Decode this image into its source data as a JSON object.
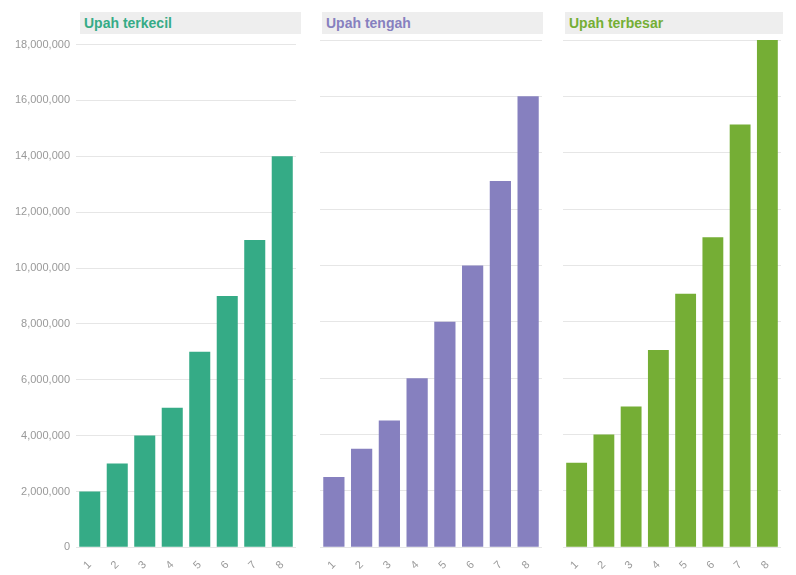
{
  "chart_data": [
    {
      "type": "bar",
      "title": "Upah terkecil",
      "categories": [
        "1",
        "2",
        "3",
        "4",
        "5",
        "6",
        "7",
        "8"
      ],
      "values": [
        2000000,
        3000000,
        4000000,
        5000000,
        7000000,
        9000000,
        11000000,
        14000000
      ],
      "color": "#35ab86",
      "ylim": [
        0,
        18000000
      ],
      "yticks": [
        0,
        {
          "value": 2000000,
          "label": "2,000,000"
        },
        {
          "value": 4000000,
          "label": "4,000,000"
        },
        {
          "value": 6000000,
          "label": "6,000,000"
        },
        {
          "value": 8000000,
          "label": "8,000,000"
        },
        {
          "value": 10000000,
          "label": "10,000,000"
        },
        {
          "value": 12000000,
          "label": "12,000,000"
        },
        {
          "value": 14000000,
          "label": "14,000,000"
        },
        {
          "value": 16000000,
          "label": "16,000,000"
        },
        {
          "value": 18000000,
          "label": "18,000,000"
        }
      ],
      "grid": true
    },
    {
      "type": "bar",
      "title": "Upah tengah",
      "categories": [
        "1",
        "2",
        "3",
        "4",
        "5",
        "6",
        "7",
        "8"
      ],
      "values": [
        2500000,
        3500000,
        4500000,
        6000000,
        8000000,
        10000000,
        13000000,
        16000000
      ],
      "color": "#8680bf",
      "ylim": [
        0,
        18000000
      ],
      "yticks": [
        0,
        2000000,
        4000000,
        6000000,
        8000000,
        10000000,
        12000000,
        14000000,
        16000000,
        18000000
      ],
      "grid": true,
      "tick_labels": "x"
    },
    {
      "type": "bar",
      "title": "Upah terbesar",
      "categories": [
        "1",
        "2",
        "3",
        "4",
        "5",
        "6",
        "7",
        "8"
      ],
      "values": [
        3000000,
        4000000,
        5000000,
        7000000,
        9000000,
        11000000,
        15000000,
        18000000
      ],
      "color": "#75ae35",
      "ylim": [
        0,
        18000000
      ],
      "yticks": [
        0,
        2000000,
        4000000,
        6000000,
        8000000,
        10000000,
        12000000,
        14000000,
        16000000,
        18000000
      ],
      "grid": true,
      "tick_labels": "x"
    }
  ]
}
